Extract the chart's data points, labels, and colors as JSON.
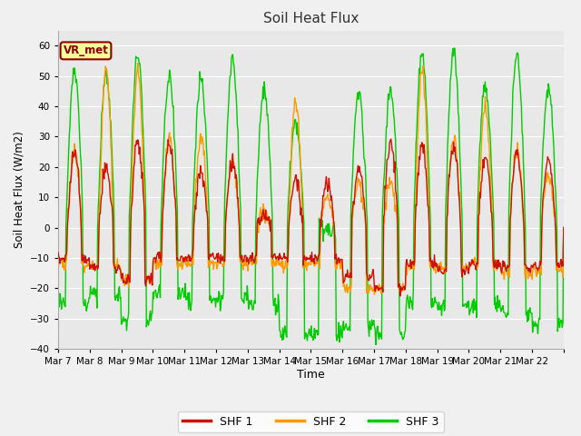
{
  "title": "Soil Heat Flux",
  "xlabel": "Time",
  "ylabel": "Soil Heat Flux (W/m2)",
  "ylim": [
    -40,
    65
  ],
  "yticks": [
    -40,
    -30,
    -20,
    -10,
    0,
    10,
    20,
    30,
    40,
    50,
    60
  ],
  "date_labels": [
    "Mar 7",
    "Mar 8",
    "Mar 9",
    "Mar 10",
    "Mar 11",
    "Mar 12",
    "Mar 13",
    "Mar 14",
    "Mar 15",
    "Mar 16",
    "Mar 17",
    "Mar 18",
    "Mar 19",
    "Mar 20",
    "Mar 21",
    "Mar 22"
  ],
  "legend_labels": [
    "SHF 1",
    "SHF 2",
    "SHF 3"
  ],
  "colors": [
    "#cc1100",
    "#ff9900",
    "#00cc00"
  ],
  "annotation_text": "VR_met",
  "annotation_color": "#880000",
  "annotation_bg": "#ffff99",
  "plot_bg_color": "#e8e8e8",
  "fig_bg_color": "#f0f0f0",
  "grid_color": "#ffffff",
  "line_width": 1.0,
  "n_days": 16,
  "points_per_day": 48,
  "shf1_day_amp": [
    25,
    20,
    29,
    28,
    18,
    22,
    4,
    15,
    15,
    20,
    28,
    27,
    27,
    23,
    26,
    22
  ],
  "shf1_night": [
    -10,
    -13,
    -17,
    -10,
    -10,
    -10,
    -10,
    -10,
    -10,
    -16,
    -20,
    -12,
    -14,
    -12,
    -13,
    -13
  ],
  "shf2_day_amp": [
    25,
    52,
    52,
    30,
    30,
    22,
    5,
    42,
    10,
    15,
    15,
    52,
    30,
    40,
    25,
    18
  ],
  "shf2_night": [
    -12,
    -13,
    -17,
    -12,
    -12,
    -12,
    -12,
    -12,
    -12,
    -20,
    -20,
    -13,
    -13,
    -12,
    -15,
    -14
  ],
  "shf3_day_amp": [
    52,
    50,
    57,
    51,
    50,
    55,
    46,
    35,
    0,
    45,
    45,
    58,
    58,
    47,
    57,
    47
  ],
  "shf3_night": [
    -25,
    -23,
    -30,
    -22,
    -24,
    -23,
    -25,
    -35,
    -35,
    -33,
    -35,
    -24,
    -26,
    -26,
    -28,
    -32
  ]
}
